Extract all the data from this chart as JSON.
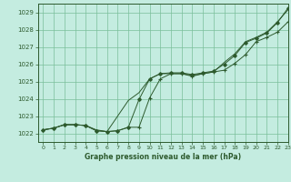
{
  "title": "Graphe pression niveau de la mer (hPa)",
  "background_color": "#c4ece0",
  "plot_bg_color": "#c4ece0",
  "grid_color": "#7abf9a",
  "line_color": "#2d5a2d",
  "xlim": [
    -0.5,
    23
  ],
  "ylim": [
    1021.5,
    1029.5
  ],
  "yticks": [
    1022,
    1023,
    1024,
    1025,
    1026,
    1027,
    1028,
    1029
  ],
  "xticks": [
    0,
    1,
    2,
    3,
    4,
    5,
    6,
    7,
    8,
    9,
    10,
    11,
    12,
    13,
    14,
    15,
    16,
    17,
    18,
    19,
    20,
    21,
    22,
    23
  ],
  "series1_x": [
    0,
    1,
    2,
    3,
    4,
    5,
    6,
    7,
    8,
    9,
    10,
    11,
    12,
    13,
    14,
    15,
    16,
    17,
    18,
    19,
    20,
    21,
    22,
    23
  ],
  "series1_y": [
    1022.2,
    1022.3,
    1022.5,
    1022.5,
    1022.45,
    1022.15,
    1022.1,
    1022.15,
    1022.35,
    1022.35,
    1024.05,
    1025.15,
    1025.45,
    1025.45,
    1025.3,
    1025.45,
    1025.55,
    1025.65,
    1026.05,
    1026.55,
    1027.3,
    1027.55,
    1027.85,
    1028.45
  ],
  "series2_x": [
    0,
    1,
    2,
    3,
    4,
    5,
    6,
    7,
    8,
    9,
    10,
    11,
    12,
    13,
    14,
    15,
    16,
    17,
    18,
    19,
    20,
    21,
    22,
    23
  ],
  "series2_y": [
    1022.2,
    1022.3,
    1022.5,
    1022.5,
    1022.45,
    1022.2,
    1022.1,
    1023.0,
    1023.9,
    1024.35,
    1025.15,
    1025.45,
    1025.45,
    1025.45,
    1025.35,
    1025.45,
    1025.55,
    1026.1,
    1026.6,
    1027.3,
    1027.55,
    1027.85,
    1028.45,
    1029.15
  ],
  "series3_x": [
    0,
    1,
    2,
    3,
    4,
    5,
    6,
    7,
    8,
    9,
    10,
    11,
    12,
    13,
    14,
    15,
    16,
    17,
    18,
    19,
    20,
    21,
    22,
    23
  ],
  "series3_y": [
    1022.2,
    1022.3,
    1022.5,
    1022.5,
    1022.45,
    1022.15,
    1022.1,
    1022.15,
    1022.35,
    1023.95,
    1025.15,
    1025.45,
    1025.5,
    1025.5,
    1025.4,
    1025.5,
    1025.6,
    1026.0,
    1026.5,
    1027.25,
    1027.5,
    1027.8,
    1028.4,
    1029.25
  ]
}
